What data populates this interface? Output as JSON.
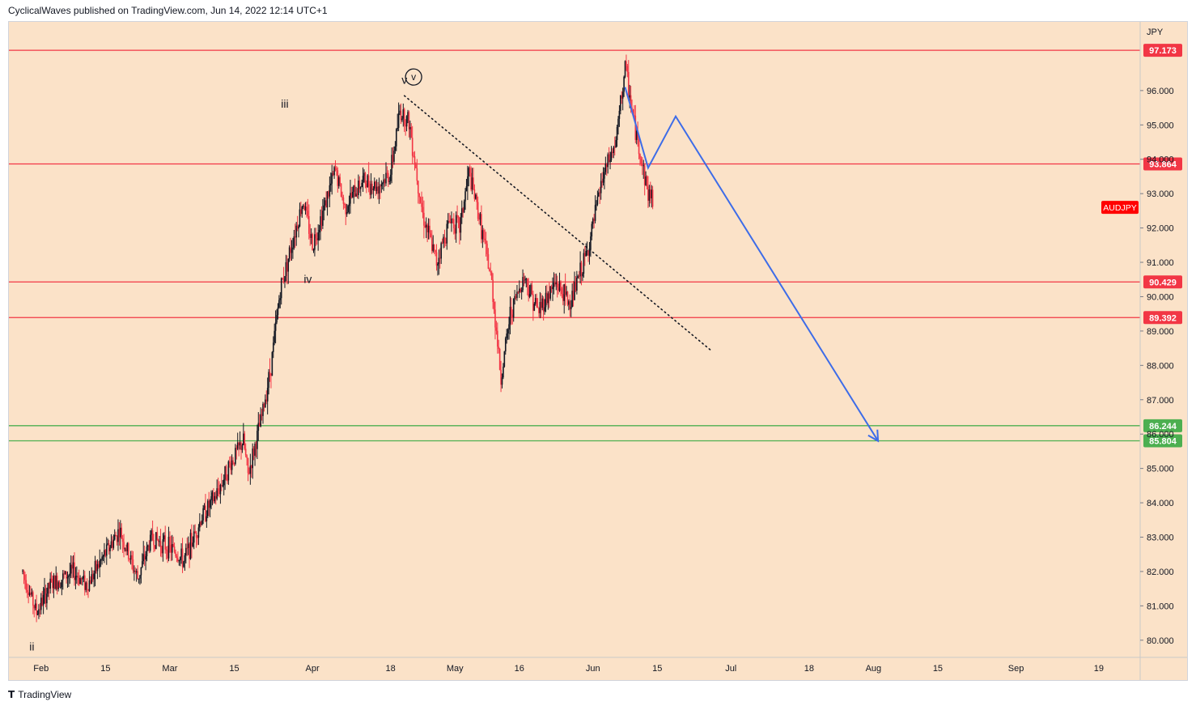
{
  "header": {
    "published": "CyclicalWaves published on TradingView.com, Jun 14, 2022 12:14 UTC+1"
  },
  "footer": {
    "brand": "TradingView",
    "logo_icon": "tradingview-logo-icon"
  },
  "chart_data": {
    "type": "candlestick",
    "symbol": "AUDJPY",
    "currency": "JPY",
    "ylim": [
      79.5,
      98.0
    ],
    "y_ticks": [
      {
        "v": 96.0,
        "label": "96.000"
      },
      {
        "v": 95.0,
        "label": "95.000"
      },
      {
        "v": 94.0,
        "label": "94.000"
      },
      {
        "v": 93.0,
        "label": "93.000"
      },
      {
        "v": 92.0,
        "label": "92.000"
      },
      {
        "v": 91.0,
        "label": "91.000"
      },
      {
        "v": 90.0,
        "label": "90.000"
      },
      {
        "v": 89.0,
        "label": "89.000"
      },
      {
        "v": 88.0,
        "label": "88.000"
      },
      {
        "v": 87.0,
        "label": "87.000"
      },
      {
        "v": 86.0,
        "label": "86.000"
      },
      {
        "v": 85.0,
        "label": "85.000"
      },
      {
        "v": 84.0,
        "label": "84.000"
      },
      {
        "v": 83.0,
        "label": "83.000"
      },
      {
        "v": 82.0,
        "label": "82.000"
      },
      {
        "v": 81.0,
        "label": "81.000"
      },
      {
        "v": 80.0,
        "label": "80.000"
      }
    ],
    "x_range": [
      "2022-01-25",
      "2022-09-28"
    ],
    "x_ticks": [
      {
        "date": "2022-02-01",
        "label": "Feb"
      },
      {
        "date": "2022-02-15",
        "label": "15"
      },
      {
        "date": "2022-03-01",
        "label": "Mar"
      },
      {
        "date": "2022-03-15",
        "label": "15"
      },
      {
        "date": "2022-04-01",
        "label": "Apr"
      },
      {
        "date": "2022-04-18",
        "label": "18"
      },
      {
        "date": "2022-05-02",
        "label": "May"
      },
      {
        "date": "2022-05-16",
        "label": "16"
      },
      {
        "date": "2022-06-01",
        "label": "Jun"
      },
      {
        "date": "2022-06-15",
        "label": "15"
      },
      {
        "date": "2022-07-01",
        "label": "Jul"
      },
      {
        "date": "2022-07-18",
        "label": "18"
      },
      {
        "date": "2022-08-01",
        "label": "Aug"
      },
      {
        "date": "2022-08-15",
        "label": "15"
      },
      {
        "date": "2022-09-01",
        "label": "Sep"
      },
      {
        "date": "2022-09-19",
        "label": "19"
      }
    ],
    "price_path": [
      [
        "2022-01-28",
        82.0
      ],
      [
        "2022-01-31",
        80.8
      ],
      [
        "2022-02-03",
        81.6
      ],
      [
        "2022-02-08",
        82.0
      ],
      [
        "2022-02-11",
        81.6
      ],
      [
        "2022-02-14",
        82.3
      ],
      [
        "2022-02-18",
        83.2
      ],
      [
        "2022-02-22",
        81.8
      ],
      [
        "2022-02-25",
        83.0
      ],
      [
        "2022-03-02",
        82.6
      ],
      [
        "2022-03-04",
        82.3
      ],
      [
        "2022-03-08",
        83.6
      ],
      [
        "2022-03-11",
        84.2
      ],
      [
        "2022-03-14",
        85.1
      ],
      [
        "2022-03-17",
        85.8
      ],
      [
        "2022-03-18",
        84.8
      ],
      [
        "2022-03-21",
        86.5
      ],
      [
        "2022-03-23",
        88.0
      ],
      [
        "2022-03-25",
        90.2
      ],
      [
        "2022-03-28",
        91.8
      ],
      [
        "2022-03-30",
        92.8
      ],
      [
        "2022-04-01",
        91.5
      ],
      [
        "2022-04-04",
        92.8
      ],
      [
        "2022-04-06",
        93.7
      ],
      [
        "2022-04-08",
        92.6
      ],
      [
        "2022-04-12",
        93.4
      ],
      [
        "2022-04-15",
        93.2
      ],
      [
        "2022-04-18",
        93.6
      ],
      [
        "2022-04-20",
        95.4
      ],
      [
        "2022-04-22",
        95.1
      ],
      [
        "2022-04-25",
        92.4
      ],
      [
        "2022-04-28",
        91.0
      ],
      [
        "2022-05-01",
        92.3
      ],
      [
        "2022-05-03",
        92.0
      ],
      [
        "2022-05-05",
        93.6
      ],
      [
        "2022-05-07",
        92.5
      ],
      [
        "2022-05-10",
        90.4
      ],
      [
        "2022-05-12",
        87.6
      ],
      [
        "2022-05-14",
        89.5
      ],
      [
        "2022-05-17",
        90.6
      ],
      [
        "2022-05-20",
        89.6
      ],
      [
        "2022-05-24",
        90.4
      ],
      [
        "2022-05-27",
        89.8
      ],
      [
        "2022-05-31",
        91.4
      ],
      [
        "2022-06-03",
        93.4
      ],
      [
        "2022-06-06",
        94.5
      ],
      [
        "2022-06-08",
        96.7
      ],
      [
        "2022-06-10",
        95.0
      ],
      [
        "2022-06-13",
        93.0
      ],
      [
        "2022-06-14",
        92.9
      ]
    ],
    "hlines": [
      {
        "v": 97.173,
        "label": "97.173",
        "color": "#f23645"
      },
      {
        "v": 93.864,
        "label": "93.864",
        "color": "#f23645"
      },
      {
        "v": 90.429,
        "label": "90.429",
        "color": "#f23645"
      },
      {
        "v": 89.392,
        "label": "89.392",
        "color": "#f23645"
      },
      {
        "v": 86.244,
        "label": "86.244",
        "color": "#4caf50"
      },
      {
        "v": 85.804,
        "label": "85.804",
        "color": "#4caf50"
      }
    ],
    "current_price_tag": {
      "label": "AUDJPY",
      "v": 92.6,
      "color": "#ff0000"
    },
    "trendline": {
      "from": [
        "2022-04-21",
        95.85
      ],
      "to": [
        "2022-06-27",
        88.4
      ],
      "style": "dotted"
    },
    "projection": {
      "points": [
        [
          "2022-06-08",
          96.1
        ],
        [
          "2022-06-13",
          93.75
        ],
        [
          "2022-06-19",
          95.25
        ],
        [
          "2022-08-02",
          85.8
        ]
      ],
      "color": "#3d6ce8"
    },
    "wave_labels": [
      {
        "text": "ii",
        "at": [
          "2022-01-30",
          79.7
        ]
      },
      {
        "text": "iii",
        "at": [
          "2022-03-26",
          95.5
        ]
      },
      {
        "text": "iv",
        "at": [
          "2022-03-31",
          90.4
        ]
      },
      {
        "text": "v",
        "at": [
          "2022-04-21",
          96.2
        ]
      },
      {
        "text": "v",
        "at": [
          "2022-04-23",
          96.3
        ],
        "circled": true
      }
    ],
    "colors": {
      "up": "#131722",
      "down": "#f23645",
      "background": "#fbe2c8"
    }
  }
}
